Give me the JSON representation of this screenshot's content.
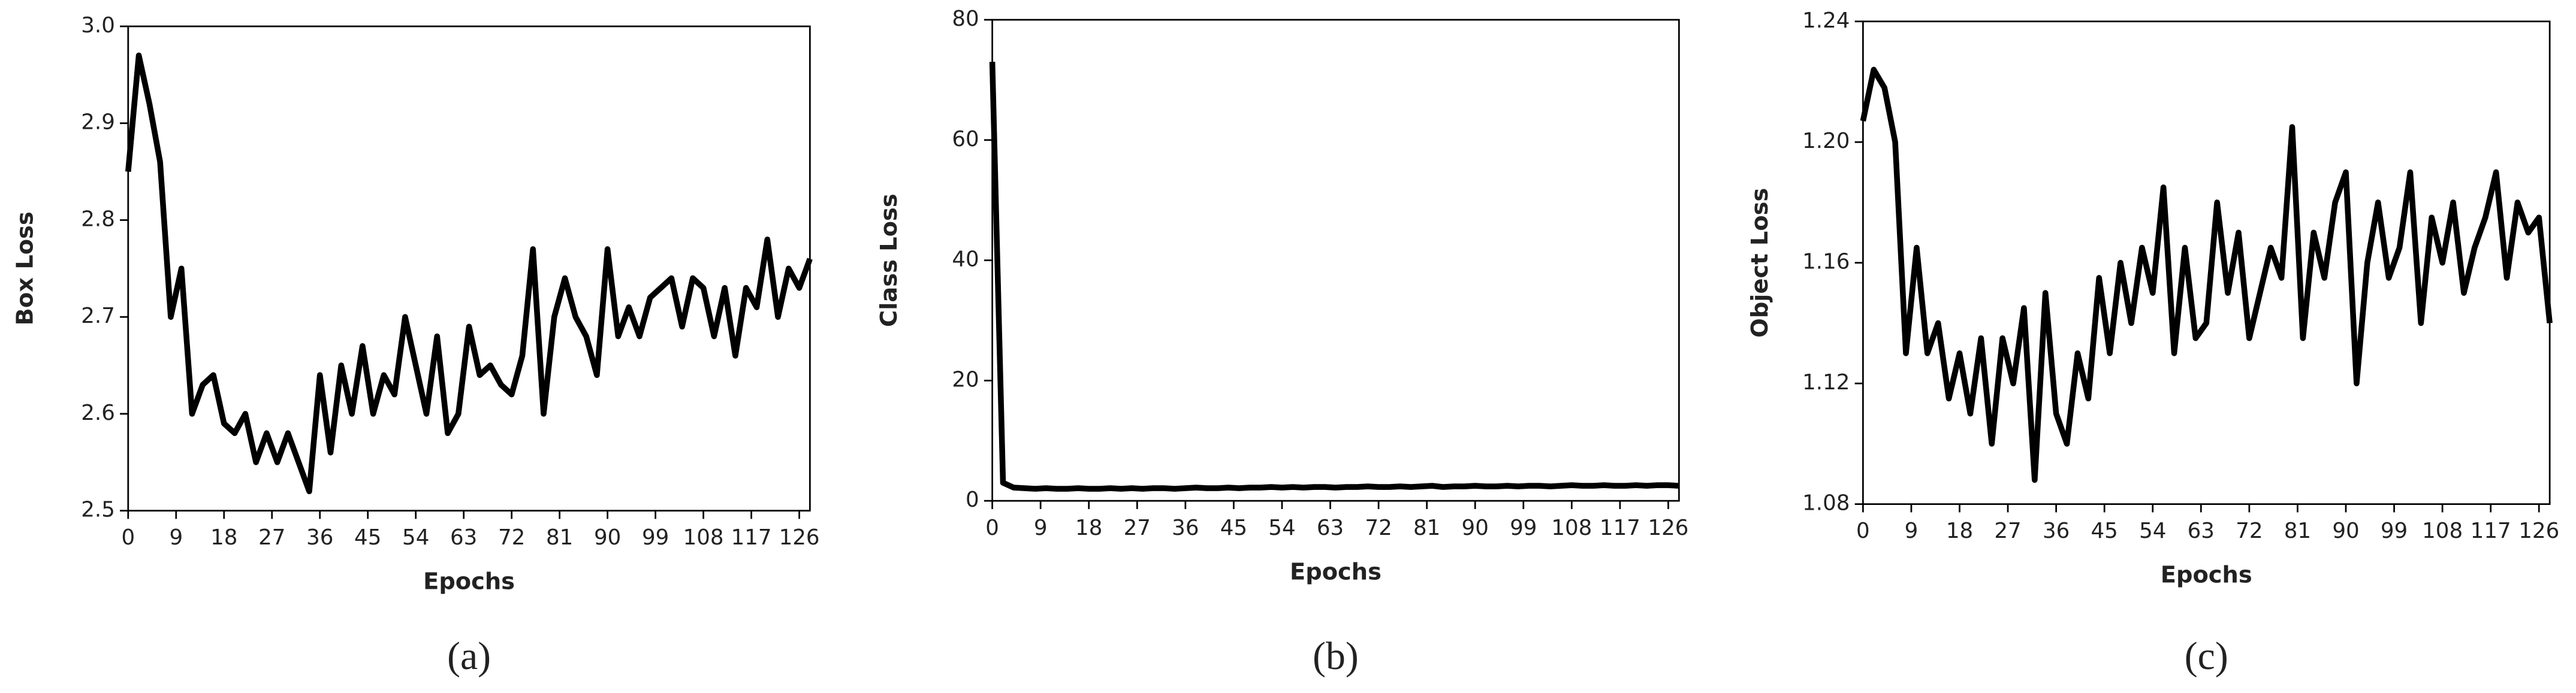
{
  "chart_data": [
    {
      "type": "line",
      "y_label": "Box Loss",
      "x_label": "Epochs",
      "caption": "(a)",
      "color": "#000000",
      "x": [
        0,
        2,
        4,
        6,
        8,
        10,
        12,
        14,
        16,
        18,
        20,
        22,
        24,
        26,
        28,
        30,
        32,
        34,
        36,
        38,
        40,
        42,
        44,
        46,
        48,
        50,
        52,
        54,
        56,
        58,
        60,
        62,
        64,
        66,
        68,
        70,
        72,
        74,
        76,
        78,
        80,
        82,
        84,
        86,
        88,
        90,
        92,
        94,
        96,
        98,
        100,
        102,
        104,
        106,
        108,
        110,
        112,
        114,
        116,
        118,
        120,
        122,
        124,
        126,
        128
      ],
      "values": [
        2.85,
        2.97,
        2.92,
        2.86,
        2.7,
        2.75,
        2.6,
        2.63,
        2.64,
        2.59,
        2.58,
        2.6,
        2.55,
        2.58,
        2.55,
        2.58,
        2.55,
        2.52,
        2.64,
        2.56,
        2.65,
        2.6,
        2.67,
        2.6,
        2.64,
        2.62,
        2.7,
        2.65,
        2.6,
        2.68,
        2.58,
        2.6,
        2.69,
        2.64,
        2.65,
        2.63,
        2.62,
        2.66,
        2.77,
        2.6,
        2.7,
        2.74,
        2.7,
        2.68,
        2.64,
        2.77,
        2.68,
        2.71,
        2.68,
        2.72,
        2.73,
        2.74,
        2.69,
        2.74,
        2.73,
        2.68,
        2.73,
        2.66,
        2.73,
        2.71,
        2.78,
        2.7,
        2.75,
        2.73,
        2.76
      ],
      "xlim": [
        0,
        128
      ],
      "ylim": [
        2.5,
        3.0
      ],
      "xticks": [
        0,
        9,
        18,
        27,
        36,
        45,
        54,
        63,
        72,
        81,
        90,
        99,
        108,
        117,
        126
      ],
      "yticks": [
        2.5,
        2.6,
        2.7,
        2.8,
        2.9,
        {
          "value": 3,
          "label": "3.0"
        }
      ]
    },
    {
      "type": "line",
      "y_label": "Class Loss",
      "x_label": "Epochs",
      "caption": "(b)",
      "color": "#000000",
      "x": [
        0,
        2,
        4,
        6,
        8,
        10,
        12,
        14,
        16,
        18,
        20,
        22,
        24,
        26,
        28,
        30,
        32,
        34,
        36,
        38,
        40,
        42,
        44,
        46,
        48,
        50,
        52,
        54,
        56,
        58,
        60,
        62,
        64,
        66,
        68,
        70,
        72,
        74,
        76,
        78,
        80,
        82,
        84,
        86,
        88,
        90,
        92,
        94,
        96,
        98,
        100,
        102,
        104,
        106,
        108,
        110,
        112,
        114,
        116,
        118,
        120,
        122,
        124,
        126,
        128
      ],
      "values": [
        73,
        3,
        2.2,
        2.1,
        2,
        2.1,
        2,
        2,
        2.1,
        2,
        2,
        2.1,
        2,
        2.1,
        2,
        2.1,
        2.1,
        2,
        2.1,
        2.2,
        2.1,
        2.1,
        2.2,
        2.1,
        2.2,
        2.2,
        2.3,
        2.2,
        2.3,
        2.2,
        2.3,
        2.3,
        2.2,
        2.3,
        2.3,
        2.4,
        2.3,
        2.3,
        2.4,
        2.3,
        2.4,
        2.5,
        2.3,
        2.4,
        2.4,
        2.5,
        2.4,
        2.4,
        2.5,
        2.4,
        2.5,
        2.5,
        2.4,
        2.5,
        2.6,
        2.5,
        2.5,
        2.6,
        2.5,
        2.5,
        2.6,
        2.5,
        2.6,
        2.6,
        2.5
      ],
      "xlim": [
        0,
        128
      ],
      "ylim": [
        0,
        80
      ],
      "xticks": [
        0,
        9,
        18,
        27,
        36,
        45,
        54,
        63,
        72,
        81,
        90,
        99,
        108,
        117,
        126
      ],
      "yticks": [
        0,
        20,
        40,
        60,
        80
      ]
    },
    {
      "type": "line",
      "y_label": "Object Loss",
      "x_label": "Epochs",
      "caption": "(c)",
      "color": "#000000",
      "x": [
        0,
        2,
        4,
        6,
        8,
        10,
        12,
        14,
        16,
        18,
        20,
        22,
        24,
        26,
        28,
        30,
        32,
        34,
        36,
        38,
        40,
        42,
        44,
        46,
        48,
        50,
        52,
        54,
        56,
        58,
        60,
        62,
        64,
        66,
        68,
        70,
        72,
        74,
        76,
        78,
        80,
        82,
        84,
        86,
        88,
        90,
        92,
        94,
        96,
        98,
        100,
        102,
        104,
        106,
        108,
        110,
        112,
        114,
        116,
        118,
        120,
        122,
        124,
        126,
        128
      ],
      "values": [
        1.207,
        1.224,
        1.218,
        1.2,
        1.13,
        1.165,
        1.13,
        1.14,
        1.115,
        1.13,
        1.11,
        1.135,
        1.1,
        1.135,
        1.12,
        1.145,
        1.088,
        1.15,
        1.11,
        1.1,
        1.13,
        1.115,
        1.155,
        1.13,
        1.16,
        1.14,
        1.165,
        1.15,
        1.185,
        1.13,
        1.165,
        1.135,
        1.14,
        1.18,
        1.15,
        1.17,
        1.135,
        1.15,
        1.165,
        1.155,
        1.205,
        1.135,
        1.17,
        1.155,
        1.18,
        1.19,
        1.12,
        1.16,
        1.18,
        1.155,
        1.165,
        1.19,
        1.14,
        1.175,
        1.16,
        1.18,
        1.15,
        1.165,
        1.175,
        1.19,
        1.155,
        1.18,
        1.17,
        1.175,
        1.14
      ],
      "xlim": [
        0,
        128
      ],
      "ylim": [
        1.08,
        1.24
      ],
      "xticks": [
        0,
        9,
        18,
        27,
        36,
        45,
        54,
        63,
        72,
        81,
        90,
        99,
        108,
        117,
        126
      ],
      "yticks": [
        1.08,
        1.12,
        1.16,
        {
          "value": 1.2,
          "label": "1.20"
        },
        1.24
      ]
    }
  ]
}
